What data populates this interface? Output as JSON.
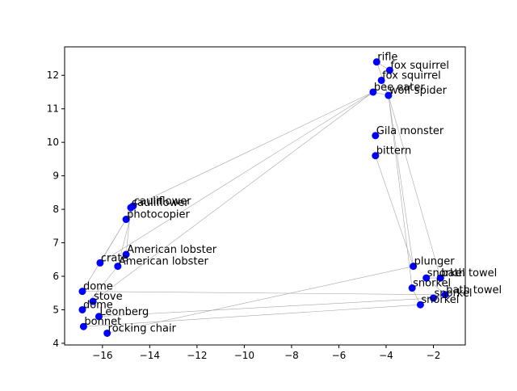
{
  "chart_data": {
    "type": "scatter",
    "title": "",
    "xlabel": "",
    "ylabel": "",
    "xlim": [
      -17.6,
      -0.65
    ],
    "ylim": [
      3.95,
      12.85
    ],
    "xticks": [
      -16,
      -14,
      -12,
      -10,
      -8,
      -6,
      -4,
      -2
    ],
    "yticks": [
      4,
      5,
      6,
      7,
      8,
      9,
      10,
      11,
      12
    ],
    "grid": false,
    "marker_color": "#0000ff",
    "line_color": "#a6a6a6",
    "points": [
      {
        "label": "rifle",
        "x": -4.4,
        "y": 12.4
      },
      {
        "label": "fox squirrel",
        "x": -3.85,
        "y": 12.15
      },
      {
        "label": "fox squirrel",
        "x": -4.2,
        "y": 11.85
      },
      {
        "label": "bee eater",
        "x": -4.55,
        "y": 11.5
      },
      {
        "label": "wolf spider",
        "x": -3.9,
        "y": 11.4
      },
      {
        "label": "Gila monster",
        "x": -4.45,
        "y": 10.2
      },
      {
        "label": "bittern",
        "x": -4.45,
        "y": 9.6
      },
      {
        "label": "cauliflower",
        "x": -14.7,
        "y": 8.1
      },
      {
        "label": "cauliflower",
        "x": -14.8,
        "y": 8.05
      },
      {
        "label": "photocopier",
        "x": -15.0,
        "y": 7.7
      },
      {
        "label": "American lobster",
        "x": -15.0,
        "y": 6.65
      },
      {
        "label": "crate",
        "x": -16.1,
        "y": 6.4
      },
      {
        "label": "American lobster",
        "x": -15.35,
        "y": 6.3
      },
      {
        "label": "plunger",
        "x": -2.85,
        "y": 6.3
      },
      {
        "label": "snorkel",
        "x": -2.3,
        "y": 5.95
      },
      {
        "label": "bath towel",
        "x": -1.7,
        "y": 5.95
      },
      {
        "label": "snorkel",
        "x": -2.9,
        "y": 5.65
      },
      {
        "label": "dome",
        "x": -16.85,
        "y": 5.55
      },
      {
        "label": "bath towel",
        "x": -1.5,
        "y": 5.45
      },
      {
        "label": "stove",
        "x": -16.4,
        "y": 5.25
      },
      {
        "label": "snorkel",
        "x": -2.0,
        "y": 5.35
      },
      {
        "label": "snorkel",
        "x": -2.55,
        "y": 5.15
      },
      {
        "label": "dome",
        "x": -16.85,
        "y": 5.0
      },
      {
        "label": "Leonberg",
        "x": -16.15,
        "y": 4.8
      },
      {
        "label": "bonnet",
        "x": -16.8,
        "y": 4.5
      },
      {
        "label": "rocking chair",
        "x": -15.8,
        "y": 4.3
      }
    ],
    "edges": [
      [
        0,
        1
      ],
      [
        0,
        4
      ],
      [
        1,
        2
      ],
      [
        2,
        4
      ],
      [
        3,
        4
      ],
      [
        3,
        8
      ],
      [
        3,
        11
      ],
      [
        3,
        19
      ],
      [
        4,
        13
      ],
      [
        4,
        15
      ],
      [
        4,
        16
      ],
      [
        6,
        13
      ],
      [
        7,
        9
      ],
      [
        7,
        12
      ],
      [
        8,
        10
      ],
      [
        9,
        11
      ],
      [
        9,
        17
      ],
      [
        10,
        12
      ],
      [
        12,
        22
      ],
      [
        14,
        18
      ],
      [
        14,
        15
      ],
      [
        16,
        21
      ],
      [
        17,
        18
      ],
      [
        20,
        23
      ],
      [
        21,
        24
      ],
      [
        13,
        25
      ],
      [
        18,
        20
      ],
      [
        19,
        22
      ],
      [
        23,
        24
      ]
    ]
  }
}
